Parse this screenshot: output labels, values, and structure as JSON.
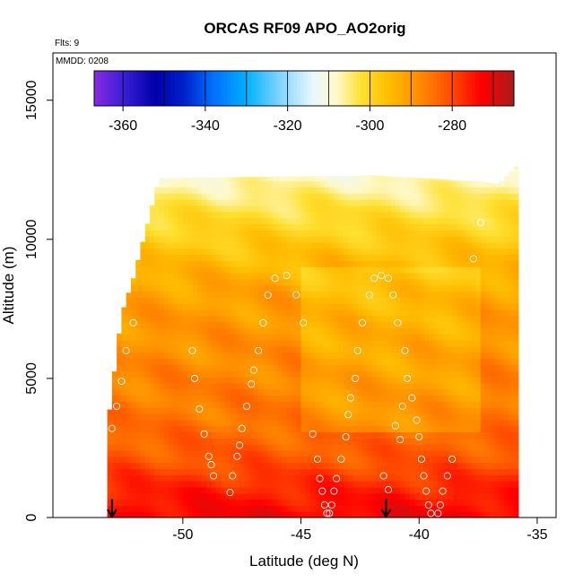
{
  "chart_data": {
    "type": "heatmap",
    "title": "ORCAS RF09 APO_AO2orig",
    "annotations": {
      "flights": "Flts: 9",
      "date": "MMDD: 0208"
    },
    "xlabel": "Latitude (deg N)",
    "ylabel": "Altitude (m)",
    "xlim": [
      -55.5,
      -34.2
    ],
    "ylim": [
      0,
      16700
    ],
    "x_ticks": [
      -50,
      -45,
      -40,
      -35
    ],
    "x_tick_labels": [
      "-50",
      "-45",
      "-40",
      "-35"
    ],
    "y_ticks": [
      0,
      5000,
      10000,
      15000
    ],
    "y_tick_labels": [
      "0",
      "5000",
      "10000",
      "15000"
    ],
    "grid": false,
    "colorbar": {
      "min": -367,
      "max": -265,
      "ticks": [
        -360,
        -340,
        -320,
        -300,
        -280
      ],
      "tick_labels": [
        "-360",
        "-340",
        "-320",
        "-300",
        "-280"
      ],
      "stops": [
        {
          "v": -367,
          "c": "#8a2be2"
        },
        {
          "v": -360,
          "c": "#3a1fd6"
        },
        {
          "v": -352,
          "c": "#0000a8"
        },
        {
          "v": -345,
          "c": "#0022cc"
        },
        {
          "v": -338,
          "c": "#0070ff"
        },
        {
          "v": -330,
          "c": "#00b0ff"
        },
        {
          "v": -322,
          "c": "#7fd4ff"
        },
        {
          "v": -314,
          "c": "#e8f7ff"
        },
        {
          "v": -308,
          "c": "#fff8c8"
        },
        {
          "v": -302,
          "c": "#ffe030"
        },
        {
          "v": -295,
          "c": "#ffbb00"
        },
        {
          "v": -288,
          "c": "#ff8c00"
        },
        {
          "v": -280,
          "c": "#ff4a00"
        },
        {
          "v": -273,
          "c": "#ff0000"
        },
        {
          "v": -265,
          "c": "#a81c1c"
        }
      ]
    },
    "field": {
      "upper_boundary": [
        [
          -53.2,
          3200
        ],
        [
          -52.6,
          7300
        ],
        [
          -52.1,
          8600
        ],
        [
          -51.0,
          12200
        ],
        [
          -42.0,
          12300
        ],
        [
          -37.7,
          12100
        ],
        [
          -36.6,
          12000
        ],
        [
          -35.8,
          12700
        ]
      ],
      "value_by_altitude": [
        [
          0,
          -272
        ],
        [
          1000,
          -276
        ],
        [
          2000,
          -281
        ],
        [
          3500,
          -285
        ],
        [
          5000,
          -287
        ],
        [
          6500,
          -289
        ],
        [
          8000,
          -291
        ],
        [
          9500,
          -296
        ],
        [
          11000,
          -302
        ],
        [
          12200,
          -308
        ]
      ],
      "north_extra_hot": [
        -45.0,
        -37.5,
        -4
      ]
    },
    "flight_points": [
      [
        -53.0,
        3200
      ],
      [
        -52.8,
        4000
      ],
      [
        -52.6,
        4900
      ],
      [
        -52.4,
        6000
      ],
      [
        -52.1,
        7000
      ],
      [
        -49.6,
        6000
      ],
      [
        -49.5,
        5000
      ],
      [
        -49.3,
        3900
      ],
      [
        -49.1,
        3000
      ],
      [
        -48.9,
        2200
      ],
      [
        -48.8,
        1900
      ],
      [
        -48.7,
        1500
      ],
      [
        -48.0,
        900
      ],
      [
        -47.9,
        1500
      ],
      [
        -47.7,
        2200
      ],
      [
        -47.6,
        2600
      ],
      [
        -47.5,
        3200
      ],
      [
        -47.3,
        4000
      ],
      [
        -47.1,
        4800
      ],
      [
        -47.0,
        5300
      ],
      [
        -46.8,
        6000
      ],
      [
        -46.6,
        7000
      ],
      [
        -46.4,
        8000
      ],
      [
        -46.1,
        8600
      ],
      [
        -45.6,
        8700
      ],
      [
        -45.2,
        8000
      ],
      [
        -44.9,
        7000
      ],
      [
        -44.5,
        3000
      ],
      [
        -44.3,
        2100
      ],
      [
        -44.2,
        1400
      ],
      [
        -44.1,
        950
      ],
      [
        -44.0,
        450
      ],
      [
        -43.9,
        150
      ],
      [
        -43.8,
        150
      ],
      [
        -43.7,
        450
      ],
      [
        -43.6,
        950
      ],
      [
        -43.5,
        1400
      ],
      [
        -43.3,
        2100
      ],
      [
        -43.1,
        2900
      ],
      [
        -43.0,
        3700
      ],
      [
        -42.9,
        4300
      ],
      [
        -42.7,
        5000
      ],
      [
        -42.6,
        6000
      ],
      [
        -42.4,
        7000
      ],
      [
        -42.1,
        8000
      ],
      [
        -41.9,
        8600
      ],
      [
        -41.6,
        8700
      ],
      [
        -41.3,
        8600
      ],
      [
        -41.1,
        8000
      ],
      [
        -40.9,
        7000
      ],
      [
        -40.6,
        6000
      ],
      [
        -40.5,
        5000
      ],
      [
        -40.3,
        4300
      ],
      [
        -40.1,
        3500
      ],
      [
        -40.0,
        2900
      ],
      [
        -39.9,
        2100
      ],
      [
        -39.8,
        1500
      ],
      [
        -39.7,
        950
      ],
      [
        -39.6,
        450
      ],
      [
        -39.5,
        150
      ],
      [
        -39.2,
        150
      ],
      [
        -39.1,
        450
      ],
      [
        -39.0,
        950
      ],
      [
        -38.8,
        1500
      ],
      [
        -38.6,
        2100
      ],
      [
        -37.7,
        9300
      ],
      [
        -37.4,
        10600
      ],
      [
        -36.6,
        12000
      ],
      [
        -36.2,
        12600
      ],
      [
        -35.9,
        12600
      ],
      [
        -35.6,
        12600
      ],
      [
        -35.3,
        12600
      ],
      [
        -41.5,
        1500
      ],
      [
        -41.3,
        1000
      ],
      [
        -40.8,
        2800
      ],
      [
        -41.0,
        3300
      ],
      [
        -40.7,
        4000
      ]
    ],
    "arrows": [
      -53.0,
      -41.4
    ]
  }
}
